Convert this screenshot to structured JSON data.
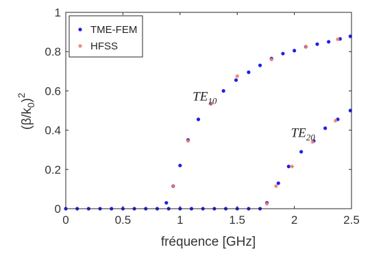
{
  "chart_data": {
    "type": "scatter",
    "title": "",
    "xlabel": "fréquence [GHz]",
    "ylabel_main": "(β/k",
    "ylabel_sub": "0",
    "ylabel_close": ")",
    "ylabel_sup": "2",
    "xlim": [
      0,
      2.5
    ],
    "ylim": [
      0,
      1
    ],
    "xticks": [
      "0",
      "0.5",
      "1",
      "1.5",
      "2",
      "2.5"
    ],
    "xtick_values": [
      0,
      0.5,
      1,
      1.5,
      2,
      2.5
    ],
    "yticks": [
      "0",
      "0.2",
      "0.4",
      "0.6",
      "0.8",
      "1"
    ],
    "ytick_values": [
      0,
      0.2,
      0.4,
      0.6,
      0.8,
      1
    ],
    "grid": false,
    "legend_position": "top-left",
    "series": [
      {
        "name": "TME-FEM",
        "marker": "dot",
        "color": "#1f1fe6",
        "points": [
          [
            0,
            0
          ],
          [
            0.1,
            0
          ],
          [
            0.2,
            0
          ],
          [
            0.3,
            0
          ],
          [
            0.4,
            0
          ],
          [
            0.5,
            0
          ],
          [
            0.6,
            0
          ],
          [
            0.7,
            0
          ],
          [
            0.8,
            0
          ],
          [
            0.9,
            0
          ],
          [
            1.0,
            0
          ],
          [
            1.1,
            0
          ],
          [
            1.2,
            0
          ],
          [
            1.3,
            0
          ],
          [
            1.4,
            0
          ],
          [
            1.5,
            0
          ],
          [
            1.6,
            0
          ],
          [
            1.7,
            0
          ],
          [
            0.88,
            0.03
          ],
          [
            0.94,
            0.115
          ],
          [
            1.0,
            0.22
          ],
          [
            1.07,
            0.35
          ],
          [
            1.16,
            0.455
          ],
          [
            1.27,
            0.535
          ],
          [
            1.38,
            0.6
          ],
          [
            1.49,
            0.655
          ],
          [
            1.6,
            0.695
          ],
          [
            1.7,
            0.73
          ],
          [
            1.8,
            0.765
          ],
          [
            1.9,
            0.79
          ],
          [
            2.0,
            0.805
          ],
          [
            2.1,
            0.825
          ],
          [
            2.2,
            0.838
          ],
          [
            2.3,
            0.85
          ],
          [
            2.4,
            0.865
          ],
          [
            2.49,
            0.878
          ],
          [
            1.76,
            0.03
          ],
          [
            1.86,
            0.13
          ],
          [
            1.95,
            0.215
          ],
          [
            2.06,
            0.29
          ],
          [
            2.17,
            0.345
          ],
          [
            2.27,
            0.41
          ],
          [
            2.38,
            0.455
          ],
          [
            2.49,
            0.5
          ]
        ]
      },
      {
        "name": "HFSS",
        "marker": "star",
        "color": "#f07a6e",
        "points": [
          [
            0.94,
            0.115
          ],
          [
            1.07,
            0.345
          ],
          [
            1.27,
            0.535
          ],
          [
            1.5,
            0.675
          ],
          [
            1.8,
            0.76
          ],
          [
            2.1,
            0.825
          ],
          [
            2.38,
            0.863
          ],
          [
            1.76,
            0.025
          ],
          [
            1.84,
            0.115
          ],
          [
            1.98,
            0.215
          ],
          [
            2.16,
            0.34
          ],
          [
            2.36,
            0.448
          ]
        ]
      }
    ],
    "annotations": [
      {
        "base": "TE",
        "sub": "10",
        "x": 1.11,
        "y": 0.55
      },
      {
        "base": "TE",
        "sub": "20",
        "x": 1.97,
        "y": 0.365
      }
    ]
  }
}
